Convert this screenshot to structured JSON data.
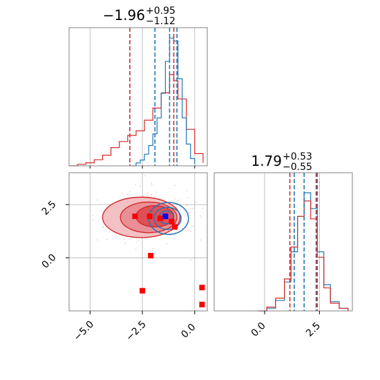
{
  "chart_data": {
    "type": "corner",
    "parameters": [
      {
        "title_main": "−1.96",
        "title_plus": "+0.95",
        "title_minus": "−1.12"
      },
      {
        "title_main": "1.79",
        "title_plus": "+0.53",
        "title_minus": "−0.55"
      }
    ],
    "colors": {
      "blue": "#1f77b4",
      "red": "#d62728",
      "red_marker": "#ff0000",
      "blue_marker": "#0000ff",
      "grid": "#b0b0b0",
      "frame": "#808080"
    },
    "grid": true,
    "x_ticks": [
      {
        "value": -5.0,
        "label": "−5.0"
      },
      {
        "value": -2.5,
        "label": "−2.5"
      },
      {
        "value": 0.0,
        "label": "0.0"
      }
    ],
    "y_ticks_2d": [
      {
        "value": 0.0,
        "label": "0.0"
      },
      {
        "value": 2.5,
        "label": "2.5"
      }
    ],
    "x2_ticks": [
      {
        "value": 0.0,
        "label": "0.0"
      },
      {
        "value": 2.5,
        "label": "2.5"
      }
    ],
    "xlim_param1": [
      -6.0,
      0.6
    ],
    "ylim_param2": [
      -2.5,
      4.0
    ],
    "xlim_param2": [
      -2.3,
      4.0
    ],
    "marginal_1": {
      "blue_quantiles": [
        -1.9,
        -1.2,
        -0.85
      ],
      "red_quantiles": [
        -3.1,
        -1.0
      ],
      "blue_hist": [
        [
          -3.0,
          0.0
        ],
        [
          -2.8,
          0.02
        ],
        [
          -2.6,
          0.04
        ],
        [
          -2.4,
          0.08
        ],
        [
          -2.2,
          0.14
        ],
        [
          -2.0,
          0.22
        ],
        [
          -1.8,
          0.33
        ],
        [
          -1.6,
          0.5
        ],
        [
          -1.4,
          0.72
        ],
        [
          -1.2,
          0.88
        ],
        [
          -1.0,
          0.86
        ],
        [
          -0.8,
          0.6
        ],
        [
          -0.6,
          0.33
        ],
        [
          -0.4,
          0.15
        ],
        [
          -0.2,
          0.05
        ],
        [
          0.0,
          0.01
        ]
      ],
      "red_hist": [
        [
          -6.0,
          0.0
        ],
        [
          -5.6,
          0.01
        ],
        [
          -5.2,
          0.02
        ],
        [
          -4.8,
          0.04
        ],
        [
          -4.4,
          0.07
        ],
        [
          -4.0,
          0.12
        ],
        [
          -3.6,
          0.16
        ],
        [
          -3.2,
          0.2
        ],
        [
          -2.8,
          0.23
        ],
        [
          -2.4,
          0.3
        ],
        [
          -2.0,
          0.38
        ],
        [
          -1.6,
          0.48
        ],
        [
          -1.2,
          0.6
        ],
        [
          -1.0,
          0.56
        ],
        [
          -0.8,
          0.44
        ],
        [
          -0.4,
          0.24
        ],
        [
          0.0,
          0.08
        ],
        [
          0.4,
          0.02
        ]
      ]
    },
    "marginal_2": {
      "blue_quantiles": [
        1.35,
        1.8,
        2.4
      ],
      "red_quantiles": [
        1.15,
        2.35
      ],
      "blue_hist": [
        [
          -0.3,
          0.0
        ],
        [
          0.1,
          0.02
        ],
        [
          0.5,
          0.08
        ],
        [
          0.9,
          0.22
        ],
        [
          1.2,
          0.45
        ],
        [
          1.5,
          0.72
        ],
        [
          1.8,
          0.9
        ],
        [
          2.1,
          0.78
        ],
        [
          2.4,
          0.45
        ],
        [
          2.7,
          0.2
        ],
        [
          3.0,
          0.07
        ],
        [
          3.4,
          0.02
        ],
        [
          3.8,
          0.0
        ]
      ],
      "red_hist": [
        [
          -0.3,
          0.0
        ],
        [
          0.1,
          0.03
        ],
        [
          0.5,
          0.1
        ],
        [
          0.9,
          0.25
        ],
        [
          1.2,
          0.5
        ],
        [
          1.5,
          0.74
        ],
        [
          1.8,
          0.86
        ],
        [
          2.1,
          0.72
        ],
        [
          2.4,
          0.42
        ],
        [
          2.7,
          0.18
        ],
        [
          3.0,
          0.06
        ],
        [
          3.4,
          0.02
        ],
        [
          3.8,
          0.0
        ]
      ]
    },
    "joint_2d": {
      "red_filled_contours": [
        {
          "cx": -2.55,
          "cy": 1.9,
          "rx": 1.85,
          "ry": 0.95
        },
        {
          "cx": -2.2,
          "cy": 1.9,
          "rx": 1.35,
          "ry": 0.72
        },
        {
          "cx": -1.9,
          "cy": 1.95,
          "rx": 0.9,
          "ry": 0.5
        }
      ],
      "blue_contours": [
        {
          "cx": -1.25,
          "cy": 1.85,
          "rx": 0.95,
          "ry": 0.75
        },
        {
          "cx": -1.3,
          "cy": 1.85,
          "rx": 0.65,
          "ry": 0.52
        },
        {
          "cx": -1.35,
          "cy": 1.9,
          "rx": 0.35,
          "ry": 0.3
        }
      ],
      "red_markers": [
        [
          -2.85,
          1.95
        ],
        [
          -2.15,
          1.95
        ],
        [
          -1.65,
          1.85
        ],
        [
          -1.1,
          1.7
        ],
        [
          -0.95,
          1.45
        ],
        [
          -2.1,
          0.1
        ],
        [
          -2.5,
          -1.55
        ],
        [
          0.35,
          -1.4
        ],
        [
          0.35,
          -2.2
        ]
      ],
      "blue_marker": [
        -1.4,
        1.95
      ]
    }
  }
}
